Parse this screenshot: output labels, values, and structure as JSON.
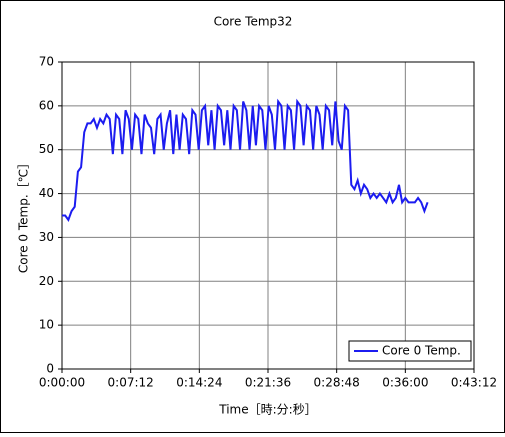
{
  "chart_data": {
    "type": "line",
    "title": "Core Temp32",
    "xlabel": "Time［時:分:秒］",
    "ylabel": "Core 0 Temp.［℃］",
    "x": [
      0,
      20,
      40,
      60,
      80,
      100,
      120,
      140,
      160,
      180,
      200,
      220,
      240,
      260,
      280,
      300,
      320,
      340,
      360,
      380,
      400,
      420,
      440,
      460,
      480,
      500,
      520,
      540,
      560,
      580,
      600,
      620,
      640,
      660,
      680,
      700,
      720,
      740,
      760,
      780,
      800,
      820,
      840,
      860,
      880,
      900,
      920,
      940,
      960,
      980,
      1000,
      1020,
      1040,
      1060,
      1080,
      1100,
      1120,
      1140,
      1160,
      1180,
      1200,
      1220,
      1240,
      1260,
      1280,
      1300,
      1320,
      1340,
      1360,
      1380,
      1400,
      1420,
      1440,
      1460,
      1480,
      1500,
      1520,
      1540,
      1560,
      1580,
      1600,
      1620,
      1640,
      1660,
      1680,
      1700,
      1720,
      1740,
      1760,
      1780,
      1800,
      1820,
      1840,
      1860,
      1880,
      1900,
      1920,
      1940,
      1960,
      1980,
      2000,
      2020,
      2040,
      2060,
      2080,
      2100,
      2120,
      2140,
      2160,
      2180,
      2200,
      2220,
      2240,
      2260,
      2280,
      2300
    ],
    "series": [
      {
        "name": "Core 0 Temp.",
        "color": "#1c1cf0",
        "values": [
          35,
          35,
          34,
          36,
          37,
          45,
          46,
          54,
          56,
          56,
          57,
          55,
          57,
          56,
          58,
          57,
          49,
          58,
          57,
          49,
          59,
          57,
          50,
          58,
          57,
          49,
          58,
          56,
          55,
          49,
          57,
          58,
          50,
          56,
          59,
          49,
          58,
          50,
          58,
          57,
          49,
          59,
          58,
          50,
          59,
          60,
          51,
          59,
          50,
          60,
          59,
          51,
          59,
          50,
          60,
          59,
          50,
          61,
          59,
          50,
          60,
          51,
          60,
          59,
          50,
          60,
          58,
          50,
          61,
          60,
          50,
          60,
          59,
          50,
          61,
          60,
          51,
          60,
          59,
          50,
          60,
          58,
          50,
          60,
          59,
          51,
          61,
          52,
          50,
          60,
          59,
          42,
          41,
          43,
          40,
          42,
          41,
          39,
          40,
          39,
          40,
          39,
          38,
          40,
          38,
          39,
          42,
          38,
          39,
          38,
          38,
          38,
          39,
          38,
          36,
          38
        ]
      }
    ],
    "xlim": [
      0,
      2592
    ],
    "xticks": [
      {
        "value": 0,
        "label": "0:00:00"
      },
      {
        "value": 432,
        "label": "0:07:12"
      },
      {
        "value": 864,
        "label": "0:14:24"
      },
      {
        "value": 1296,
        "label": "0:21:36"
      },
      {
        "value": 1728,
        "label": "0:28:48"
      },
      {
        "value": 2160,
        "label": "0:36:00"
      },
      {
        "value": 2592,
        "label": "0:43:12"
      }
    ],
    "ylim": [
      0,
      70
    ],
    "yticks": [
      0,
      10,
      20,
      30,
      40,
      50,
      60,
      70
    ],
    "grid": true,
    "legend": "lower right"
  }
}
